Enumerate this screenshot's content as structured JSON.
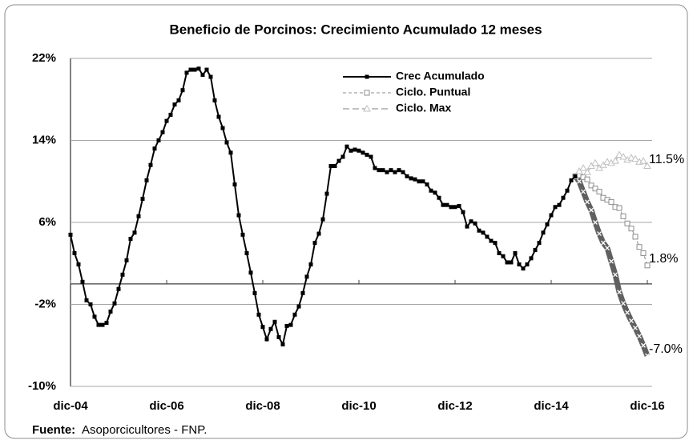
{
  "chart_data": {
    "type": "line",
    "title": "Beneficio de Porcinos: Crecimiento Acumulado 12 meses",
    "source": {
      "label": "Fuente:",
      "text": "Asoporcicultores - FNP."
    },
    "categories": [
      "dic-04",
      null,
      null,
      null,
      null,
      null,
      null,
      null,
      null,
      null,
      null,
      null,
      null,
      null,
      null,
      null,
      null,
      null,
      null,
      null,
      null,
      null,
      null,
      null,
      "dic-06",
      null,
      null,
      null,
      null,
      null,
      null,
      null,
      null,
      null,
      null,
      null,
      null,
      null,
      null,
      null,
      null,
      null,
      null,
      null,
      null,
      null,
      null,
      null,
      "dic-08",
      null,
      null,
      null,
      null,
      null,
      null,
      null,
      null,
      null,
      null,
      null,
      null,
      null,
      null,
      null,
      null,
      null,
      null,
      null,
      null,
      null,
      null,
      null,
      "dic-10",
      null,
      null,
      null,
      null,
      null,
      null,
      null,
      null,
      null,
      null,
      null,
      null,
      null,
      null,
      null,
      null,
      null,
      null,
      null,
      null,
      null,
      null,
      null,
      "dic-12",
      null,
      null,
      null,
      null,
      null,
      null,
      null,
      null,
      null,
      null,
      null,
      null,
      null,
      null,
      null,
      null,
      null,
      null,
      null,
      null,
      null,
      null,
      null,
      "dic-14",
      null,
      null,
      null,
      null,
      null,
      null,
      null,
      null,
      null,
      null,
      null,
      null,
      null,
      null,
      null,
      null,
      null,
      null,
      null,
      null,
      null,
      null,
      null,
      "dic-16"
    ],
    "series": [
      {
        "name": "Crec Acumulado",
        "color": "#000000",
        "marker": "square-filled",
        "line_width": 2,
        "dash": "none",
        "legend": true,
        "values": [
          4.8,
          3.0,
          1.9,
          0.2,
          -1.6,
          -2.0,
          -3.2,
          -4.0,
          -4.0,
          -3.8,
          -2.7,
          -1.9,
          -0.5,
          0.9,
          2.3,
          4.4,
          5.0,
          6.6,
          8.3,
          10.1,
          11.6,
          13.2,
          14.0,
          14.8,
          15.9,
          16.5,
          17.5,
          17.9,
          18.9,
          20.6,
          20.9,
          20.9,
          21.0,
          20.4,
          20.9,
          20.2,
          17.9,
          16.3,
          15.2,
          13.8,
          12.8,
          9.7,
          6.7,
          4.8,
          3.0,
          1.1,
          -0.9,
          -3.0,
          -4.2,
          -5.4,
          -4.4,
          -3.7,
          -5.2,
          -5.9,
          -4.1,
          -4.0,
          -3.0,
          -2.2,
          -0.9,
          0.7,
          1.9,
          4.0,
          4.9,
          6.3,
          8.8,
          11.5,
          11.5,
          12.0,
          12.4,
          13.4,
          13.0,
          13.1,
          13.0,
          12.8,
          12.6,
          12.4,
          11.3,
          11.1,
          11.1,
          10.9,
          11.1,
          10.9,
          11.1,
          10.9,
          10.5,
          10.3,
          10.2,
          10.0,
          10.0,
          9.7,
          9.1,
          8.9,
          8.4,
          7.7,
          7.7,
          7.5,
          7.5,
          7.6,
          7.0,
          5.6,
          6.1,
          5.9,
          5.2,
          5.0,
          4.6,
          4.2,
          4.0,
          3.0,
          2.7,
          2.1,
          2.1,
          3.0,
          1.9,
          1.5,
          1.9,
          2.5,
          3.3,
          4.0,
          5.0,
          5.8,
          6.7,
          7.5,
          7.7,
          8.4,
          9.1,
          10.1,
          10.5,
          null,
          null,
          null,
          null,
          null,
          null,
          null,
          null,
          null,
          null,
          null,
          null,
          null,
          null,
          null,
          null,
          null,
          null
        ]
      },
      {
        "name": "Ciclo. Puntual",
        "color": "#8c8c8c",
        "marker": "square-open",
        "line_width": 1,
        "dash": "4 3",
        "legend": true,
        "values": [
          null,
          null,
          null,
          null,
          null,
          null,
          null,
          null,
          null,
          null,
          null,
          null,
          null,
          null,
          null,
          null,
          null,
          null,
          null,
          null,
          null,
          null,
          null,
          null,
          null,
          null,
          null,
          null,
          null,
          null,
          null,
          null,
          null,
          null,
          null,
          null,
          null,
          null,
          null,
          null,
          null,
          null,
          null,
          null,
          null,
          null,
          null,
          null,
          null,
          null,
          null,
          null,
          null,
          null,
          null,
          null,
          null,
          null,
          null,
          null,
          null,
          null,
          null,
          null,
          null,
          null,
          null,
          null,
          null,
          null,
          null,
          null,
          null,
          null,
          null,
          null,
          null,
          null,
          null,
          null,
          null,
          null,
          null,
          null,
          null,
          null,
          null,
          null,
          null,
          null,
          null,
          null,
          null,
          null,
          null,
          null,
          null,
          null,
          null,
          null,
          null,
          null,
          null,
          null,
          null,
          null,
          null,
          null,
          null,
          null,
          null,
          null,
          null,
          null,
          null,
          null,
          null,
          null,
          null,
          null,
          null,
          null,
          null,
          null,
          null,
          null,
          10.5,
          10.6,
          10.4,
          10.2,
          9.6,
          9.3,
          9.0,
          8.4,
          8.2,
          8.0,
          7.5,
          7.4,
          6.6,
          5.9,
          5.4,
          4.6,
          3.6,
          3.0,
          1.8
        ]
      },
      {
        "name": "Ciclo. Max",
        "color": "#c0c0c0",
        "marker": "triangle-open",
        "line_width": 2,
        "dash": "8 4",
        "legend": true,
        "values": [
          null,
          null,
          null,
          null,
          null,
          null,
          null,
          null,
          null,
          null,
          null,
          null,
          null,
          null,
          null,
          null,
          null,
          null,
          null,
          null,
          null,
          null,
          null,
          null,
          null,
          null,
          null,
          null,
          null,
          null,
          null,
          null,
          null,
          null,
          null,
          null,
          null,
          null,
          null,
          null,
          null,
          null,
          null,
          null,
          null,
          null,
          null,
          null,
          null,
          null,
          null,
          null,
          null,
          null,
          null,
          null,
          null,
          null,
          null,
          null,
          null,
          null,
          null,
          null,
          null,
          null,
          null,
          null,
          null,
          null,
          null,
          null,
          null,
          null,
          null,
          null,
          null,
          null,
          null,
          null,
          null,
          null,
          null,
          null,
          null,
          null,
          null,
          null,
          null,
          null,
          null,
          null,
          null,
          null,
          null,
          null,
          null,
          null,
          null,
          null,
          null,
          null,
          null,
          null,
          null,
          null,
          null,
          null,
          null,
          null,
          null,
          null,
          null,
          null,
          null,
          null,
          null,
          null,
          null,
          null,
          null,
          null,
          null,
          null,
          null,
          null,
          10.5,
          11.0,
          11.3,
          10.9,
          11.5,
          11.8,
          11.3,
          11.6,
          11.9,
          11.8,
          12.0,
          12.6,
          12.4,
          12.1,
          12.3,
          12.2,
          11.9,
          12.0,
          11.5
        ]
      },
      {
        "color": "#606060",
        "marker": "x",
        "line_width": 7,
        "dash": "none",
        "legend": false,
        "values": [
          null,
          null,
          null,
          null,
          null,
          null,
          null,
          null,
          null,
          null,
          null,
          null,
          null,
          null,
          null,
          null,
          null,
          null,
          null,
          null,
          null,
          null,
          null,
          null,
          null,
          null,
          null,
          null,
          null,
          null,
          null,
          null,
          null,
          null,
          null,
          null,
          null,
          null,
          null,
          null,
          null,
          null,
          null,
          null,
          null,
          null,
          null,
          null,
          null,
          null,
          null,
          null,
          null,
          null,
          null,
          null,
          null,
          null,
          null,
          null,
          null,
          null,
          null,
          null,
          null,
          null,
          null,
          null,
          null,
          null,
          null,
          null,
          null,
          null,
          null,
          null,
          null,
          null,
          null,
          null,
          null,
          null,
          null,
          null,
          null,
          null,
          null,
          null,
          null,
          null,
          null,
          null,
          null,
          null,
          null,
          null,
          null,
          null,
          null,
          null,
          null,
          null,
          null,
          null,
          null,
          null,
          null,
          null,
          null,
          null,
          null,
          null,
          null,
          null,
          null,
          null,
          null,
          null,
          null,
          null,
          null,
          null,
          null,
          null,
          null,
          null,
          10.5,
          10.0,
          9.0,
          8.0,
          7.2,
          6.0,
          4.9,
          4.0,
          3.5,
          2.2,
          0.9,
          -0.8,
          -1.9,
          -2.8,
          -3.6,
          -4.3,
          -5.1,
          -6.0,
          -7.0
        ]
      }
    ],
    "annotations": [
      {
        "value": 11.5,
        "label": "11.5%"
      },
      {
        "value": 1.8,
        "label": "1.8%"
      },
      {
        "value": -7.0,
        "label": "-7.0%"
      }
    ],
    "ylim": [
      -10,
      22
    ],
    "yticks": [
      {
        "value": -10,
        "label": "-10%"
      },
      {
        "value": -2,
        "label": "-2%"
      },
      {
        "value": 6,
        "label": "6%"
      },
      {
        "value": 14,
        "label": "14%"
      },
      {
        "value": 22,
        "label": "22%"
      }
    ],
    "grid": true,
    "legend_position": "top-center"
  }
}
